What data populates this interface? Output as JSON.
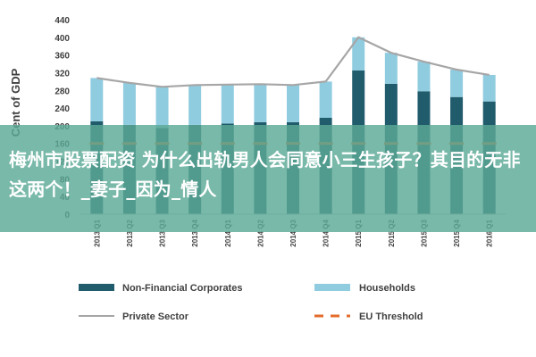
{
  "chart_data": {
    "type": "bar",
    "title": "",
    "xlabel": "",
    "ylabel": "Cent of GDP",
    "ylim": [
      0,
      440
    ],
    "yticks": [
      0,
      40,
      80,
      120,
      160,
      200,
      240,
      280,
      320,
      360,
      400,
      440
    ],
    "grid": false,
    "legend_position": "bottom",
    "categories": [
      "2013 Q1",
      "2013 Q2",
      "2013 Q3",
      "2013 Q4",
      "2014 Q1",
      "2014 Q2",
      "2014 Q3",
      "2014 Q4",
      "2015 Q1",
      "2015 Q2",
      "2015 Q3",
      "2015 Q4",
      "2016 Q1"
    ],
    "series": [
      {
        "name": "Non-Financial Corporates",
        "kind": "stacked-bar",
        "color": "#215c6c",
        "values": [
          210,
          202,
          195,
          202,
          205,
          208,
          208,
          218,
          325,
          295,
          278,
          265,
          255
        ]
      },
      {
        "name": "Households",
        "kind": "stacked-bar",
        "color": "#90cce0",
        "values": [
          98,
          95,
          93,
          90,
          88,
          86,
          84,
          82,
          75,
          70,
          67,
          62,
          60
        ]
      },
      {
        "name": "Private Sector",
        "kind": "line",
        "color": "#a6a6a6",
        "values": [
          308,
          297,
          288,
          292,
          293,
          294,
          292,
          300,
          400,
          365,
          345,
          327,
          315
        ]
      },
      {
        "name": "EU Threshold",
        "kind": "dash-line",
        "color": "#e36c2c",
        "values": [
          160,
          160,
          160,
          160,
          160,
          160,
          160,
          160,
          160,
          160,
          160,
          160,
          160
        ]
      }
    ]
  },
  "legend": {
    "nonfinancial": "Non-Financial Corporates",
    "households": "Households",
    "private": "Private Sector",
    "threshold": "EU Threshold"
  },
  "overlay": {
    "banner_text": "梅州市股票配资 为什么出轨男人会同意小三生孩子？其目的无非这两个！_妻子_因为_情人"
  }
}
